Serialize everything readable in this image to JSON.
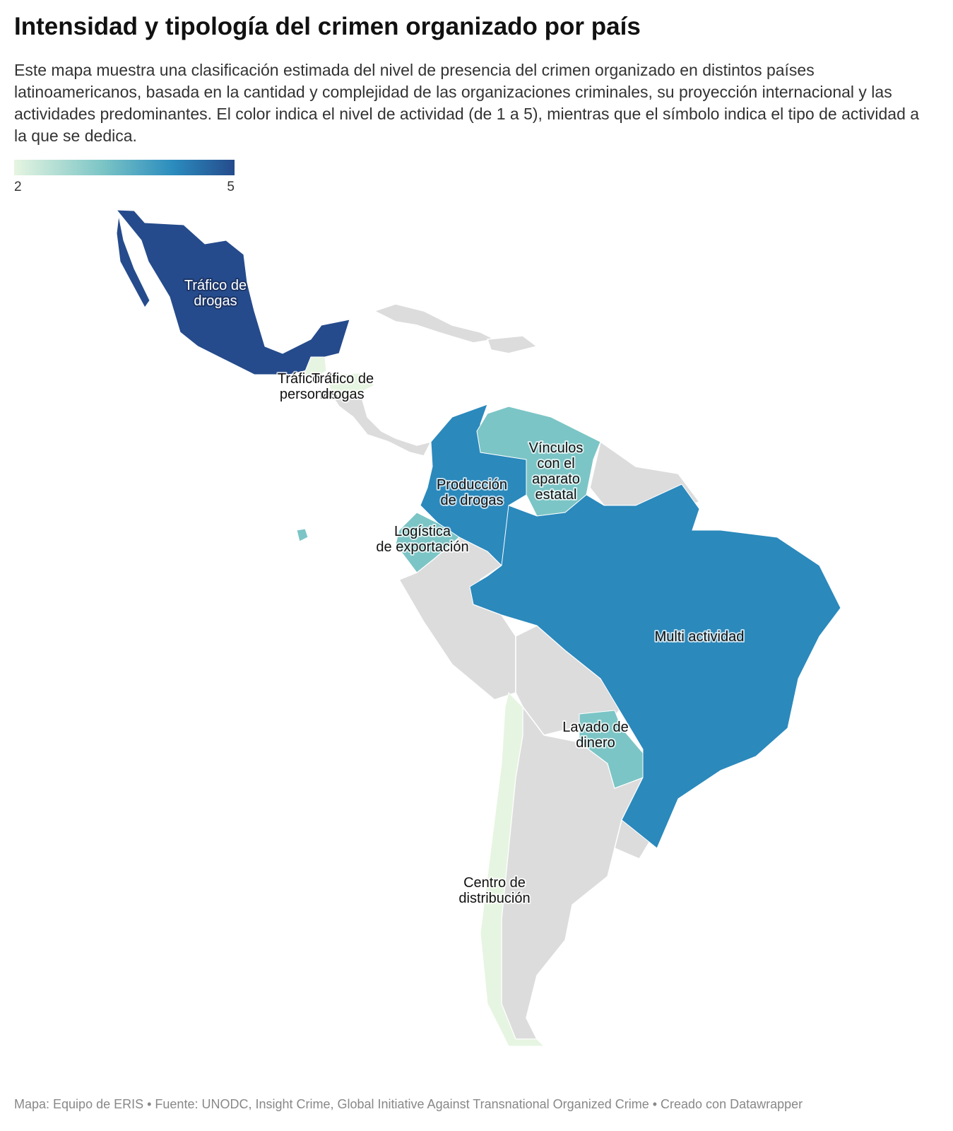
{
  "header": {
    "title": "Intensidad y tipología del crimen organizado por país",
    "description": "Este mapa muestra una clasificación estimada del nivel de presencia del crimen organizado en distintos países latinoamericanos, basada en la cantidad y complejidad de las organizaciones criminales, su proyección internacional y las actividades predominantes. El color indica el nivel de actividad (de 1 a 5), mientras que el símbolo indica el tipo de actividad a la que se dedica."
  },
  "legend": {
    "min": 2,
    "max": 5
  },
  "regions": [
    {
      "label": [
        "Tráfico de",
        "drogas"
      ],
      "level": 5
    },
    {
      "label": [
        "Tráfico de",
        "personas"
      ],
      "level": 2
    },
    {
      "label": [
        "Tráfico de",
        "drogas"
      ],
      "level": 2
    },
    {
      "label": [
        "Producción",
        "de drogas"
      ],
      "level": 4.2
    },
    {
      "label": [
        "Vínculos",
        "con el",
        "aparato",
        "estatal"
      ],
      "level": 3.2
    },
    {
      "label": [
        "Logística",
        "de exportación"
      ],
      "level": 3.2
    },
    {
      "label": [
        "Multi actividad"
      ],
      "level": 4.2
    },
    {
      "label": [
        "Lavado de",
        "dinero"
      ],
      "level": 3.2
    },
    {
      "label": [
        "Centro de",
        "distribución"
      ],
      "level": 2
    }
  ],
  "footer": "Mapa: Equipo de ERIS • Fuente: UNODC, Insight Crime, Global Initiative Against Transnational Organized Crime • Creado con Datawrapper"
}
